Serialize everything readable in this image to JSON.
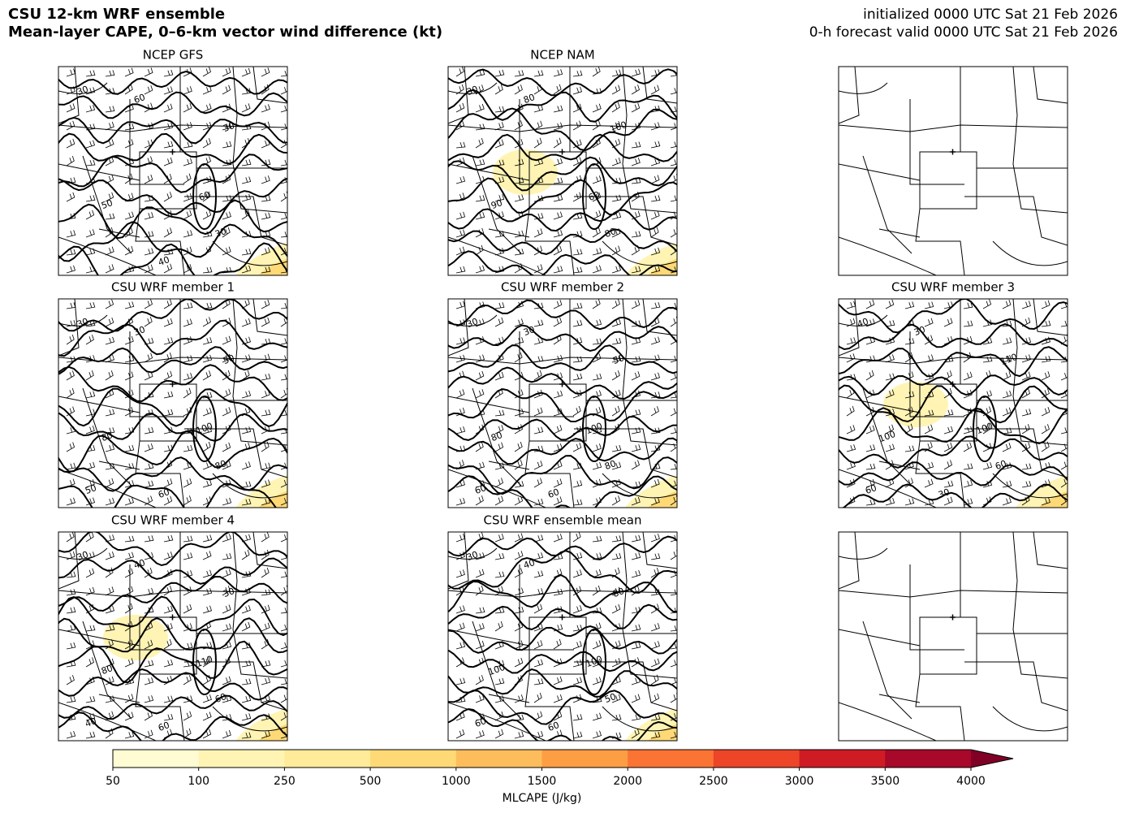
{
  "header": {
    "title": "CSU 12-km WRF ensemble",
    "subtitle": "Mean-layer CAPE, 0–6-km vector wind difference (kt)",
    "init": "initialized 0000 UTC Sat 21 Feb 2026",
    "valid": "0-h forecast valid 0000 UTC Sat 21 Feb 2026"
  },
  "panels": [
    {
      "title": "NCEP GFS",
      "contour_labels": [
        30,
        60,
        30,
        50,
        60,
        30,
        40
      ]
    },
    {
      "title": "NCEP NAM",
      "contour_labels": [
        30,
        80,
        100,
        90,
        60,
        80
      ]
    },
    {
      "title": "CSU WRF member 1",
      "contour_labels": [
        30,
        30,
        50,
        80,
        100,
        80,
        60,
        50
      ]
    },
    {
      "title": "CSU WRF member 2",
      "contour_labels": [
        30,
        30,
        50,
        80,
        100,
        80,
        60,
        60
      ]
    },
    {
      "title": "CSU WRF member 3",
      "contour_labels": [
        40,
        30,
        110,
        100,
        100,
        60,
        30,
        60
      ]
    },
    {
      "title": "CSU WRF member 4",
      "contour_labels": [
        30,
        40,
        30,
        80,
        110,
        60,
        60,
        40
      ]
    },
    {
      "title": "CSU WRF ensemble mean",
      "contour_labels": [
        30,
        40,
        80,
        100,
        100,
        50,
        60,
        60
      ]
    }
  ],
  "colorbar": {
    "label": "MLCAPE (J/kg)",
    "ticks": [
      50,
      100,
      250,
      500,
      1000,
      1500,
      2000,
      2500,
      3000,
      3500,
      4000
    ],
    "colors": [
      "#fffbd2",
      "#fff4b4",
      "#ffeb9a",
      "#fed976",
      "#fdbd5c",
      "#fd9e44",
      "#fc7434",
      "#ec4528",
      "#cf1b24",
      "#a8082a",
      "#800026"
    ],
    "extend": "max"
  }
}
